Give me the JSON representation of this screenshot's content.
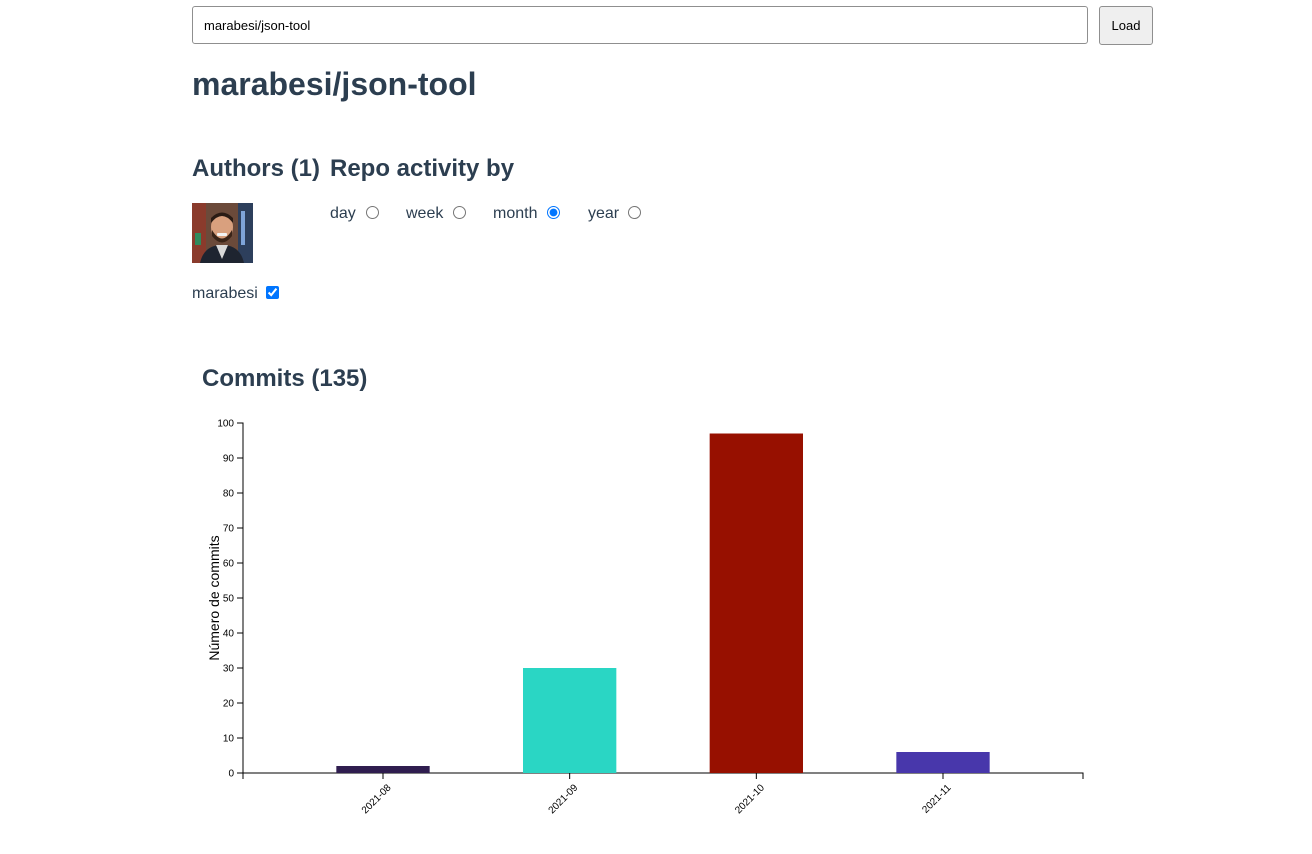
{
  "search": {
    "value": "marabesi/json-tool",
    "button_label": "Load"
  },
  "repo": {
    "title": "marabesi/json-tool"
  },
  "authors": {
    "heading": "Authors (1)",
    "list": [
      {
        "name": "marabesi",
        "checked": true,
        "avatar_icon": "avatar-photo"
      }
    ]
  },
  "activity": {
    "heading": "Repo activity by",
    "options": [
      {
        "label": "day",
        "selected": false
      },
      {
        "label": "week",
        "selected": false
      },
      {
        "label": "month",
        "selected": true
      },
      {
        "label": "year",
        "selected": false
      }
    ]
  },
  "commits": {
    "heading": "Commits (135)"
  },
  "chart_data": {
    "type": "bar",
    "categories": [
      "2021-08",
      "2021-09",
      "2021-10",
      "2021-11"
    ],
    "values": [
      2,
      30,
      97,
      6
    ],
    "colors": [
      "#2f1d4f",
      "#2ad6c4",
      "#971000",
      "#4837ab"
    ],
    "xlabel": "",
    "ylabel": "Número de commits",
    "ylim": [
      0,
      100
    ],
    "yticks": [
      0,
      10,
      20,
      30,
      40,
      50,
      60,
      70,
      80,
      90,
      100
    ],
    "grid": false
  }
}
